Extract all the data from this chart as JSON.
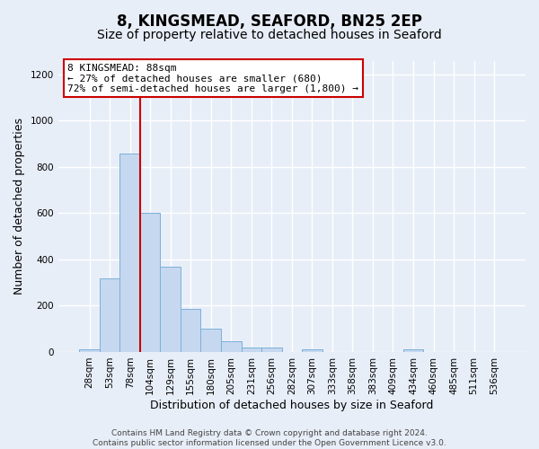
{
  "title": "8, KINGSMEAD, SEAFORD, BN25 2EP",
  "subtitle": "Size of property relative to detached houses in Seaford",
  "xlabel": "Distribution of detached houses by size in Seaford",
  "ylabel": "Number of detached properties",
  "bar_labels": [
    "28sqm",
    "53sqm",
    "78sqm",
    "104sqm",
    "129sqm",
    "155sqm",
    "180sqm",
    "205sqm",
    "231sqm",
    "256sqm",
    "282sqm",
    "307sqm",
    "333sqm",
    "358sqm",
    "383sqm",
    "409sqm",
    "434sqm",
    "460sqm",
    "485sqm",
    "511sqm",
    "536sqm"
  ],
  "bar_values": [
    10,
    320,
    860,
    600,
    370,
    185,
    100,
    45,
    20,
    20,
    0,
    10,
    0,
    0,
    0,
    0,
    10,
    0,
    0,
    0,
    0
  ],
  "bar_color": "#c5d8f0",
  "bar_edge_color": "#7ab0d8",
  "vline_color": "#cc0000",
  "vline_x": 2.5,
  "ylim": [
    0,
    1260
  ],
  "yticks": [
    0,
    200,
    400,
    600,
    800,
    1000,
    1200
  ],
  "annotation_title": "8 KINGSMEAD: 88sqm",
  "annotation_line1": "← 27% of detached houses are smaller (680)",
  "annotation_line2": "72% of semi-detached houses are larger (1,800) →",
  "annotation_box_color": "#ffffff",
  "annotation_box_edge": "#cc0000",
  "footer1": "Contains HM Land Registry data © Crown copyright and database right 2024.",
  "footer2": "Contains public sector information licensed under the Open Government Licence v3.0.",
  "fig_bg_color": "#e8eef8",
  "plot_bg_color": "#e8eef8",
  "grid_color": "#ffffff",
  "title_fontsize": 12,
  "subtitle_fontsize": 10,
  "axis_label_fontsize": 9,
  "tick_fontsize": 7.5,
  "annotation_fontsize": 8,
  "footer_fontsize": 6.5
}
